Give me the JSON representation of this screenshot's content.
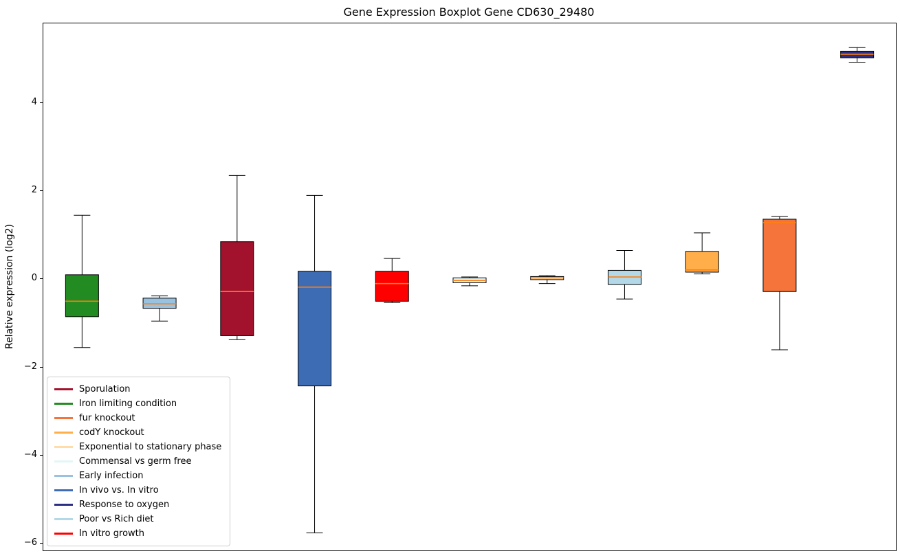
{
  "chart_data": {
    "type": "boxplot",
    "title": "Gene Expression Boxplot Gene CD630_29480",
    "ylabel": "Relative expression (log2)",
    "xlabel": "",
    "ylim": [
      -6.15,
      5.8
    ],
    "yticks": [
      -6,
      -4,
      -2,
      0,
      2,
      4
    ],
    "grid": false,
    "legend_position": "lower left",
    "median_color": "#ff7f0e",
    "box_edge_color": "#000000",
    "series": [
      {
        "name": "Iron limiting condition",
        "color": "#228B22",
        "whislo": -1.55,
        "q1": -0.85,
        "med": -0.5,
        "q3": 0.1,
        "whishi": 1.45
      },
      {
        "name": "Early infection",
        "color": "#99C2E0",
        "whislo": -0.95,
        "q1": -0.66,
        "med": -0.56,
        "q3": -0.43,
        "whishi": -0.38
      },
      {
        "name": "Sporulation",
        "color": "#A3122D",
        "whislo": -1.37,
        "q1": -1.28,
        "med": -0.28,
        "q3": 0.85,
        "whishi": 2.35
      },
      {
        "name": "In vivo vs. In vitro",
        "color": "#3D6CB5",
        "whislo": -5.75,
        "q1": -2.42,
        "med": -0.18,
        "q3": 0.18,
        "whishi": 1.9
      },
      {
        "name": "In vitro growth",
        "color": "#FF0000",
        "whislo": -0.53,
        "q1": -0.5,
        "med": -0.1,
        "q3": 0.18,
        "whishi": 0.47
      },
      {
        "name": "Commensal vs germ free",
        "color": "#E3F6F6",
        "whislo": -0.15,
        "q1": -0.08,
        "med": -0.03,
        "q3": 0.03,
        "whishi": 0.05
      },
      {
        "name": "Exponential to stationary phase",
        "color": "#FFDCA9",
        "whislo": -0.1,
        "q1": -0.01,
        "med": 0.03,
        "q3": 0.06,
        "whishi": 0.08
      },
      {
        "name": "Poor vs Rich diet",
        "color": "#B3D9E8",
        "whislo": -0.45,
        "q1": -0.12,
        "med": 0.05,
        "q3": 0.2,
        "whishi": 0.65
      },
      {
        "name": "codY knockout",
        "color": "#FFAE4A",
        "whislo": 0.12,
        "q1": 0.16,
        "med": 0.21,
        "q3": 0.63,
        "whishi": 1.05
      },
      {
        "name": "fur knockout",
        "color": "#F4743B",
        "whislo": -1.6,
        "q1": -0.28,
        "med": 1.28,
        "q3": 1.36,
        "whishi": 1.42
      },
      {
        "name": "Response to oxygen",
        "color": "#2B2E83",
        "whislo": 4.92,
        "q1": 5.02,
        "med": 5.1,
        "q3": 5.17,
        "whishi": 5.25
      }
    ],
    "legend": [
      {
        "label": "Sporulation",
        "color": "#A3122D"
      },
      {
        "label": "Iron limiting condition",
        "color": "#228B22"
      },
      {
        "label": "fur knockout",
        "color": "#F4743B"
      },
      {
        "label": "codY knockout",
        "color": "#FFAE4A"
      },
      {
        "label": "Exponential to stationary phase",
        "color": "#FFDCA9"
      },
      {
        "label": "Commensal vs germ free",
        "color": "#E3F6F6"
      },
      {
        "label": "Early infection",
        "color": "#99C2E0"
      },
      {
        "label": "In vivo vs. In vitro",
        "color": "#3D6CB5"
      },
      {
        "label": "Response to oxygen",
        "color": "#2B2E83"
      },
      {
        "label": "Poor vs Rich diet",
        "color": "#B3D9E8"
      },
      {
        "label": "In vitro growth",
        "color": "#FF0000"
      }
    ]
  }
}
